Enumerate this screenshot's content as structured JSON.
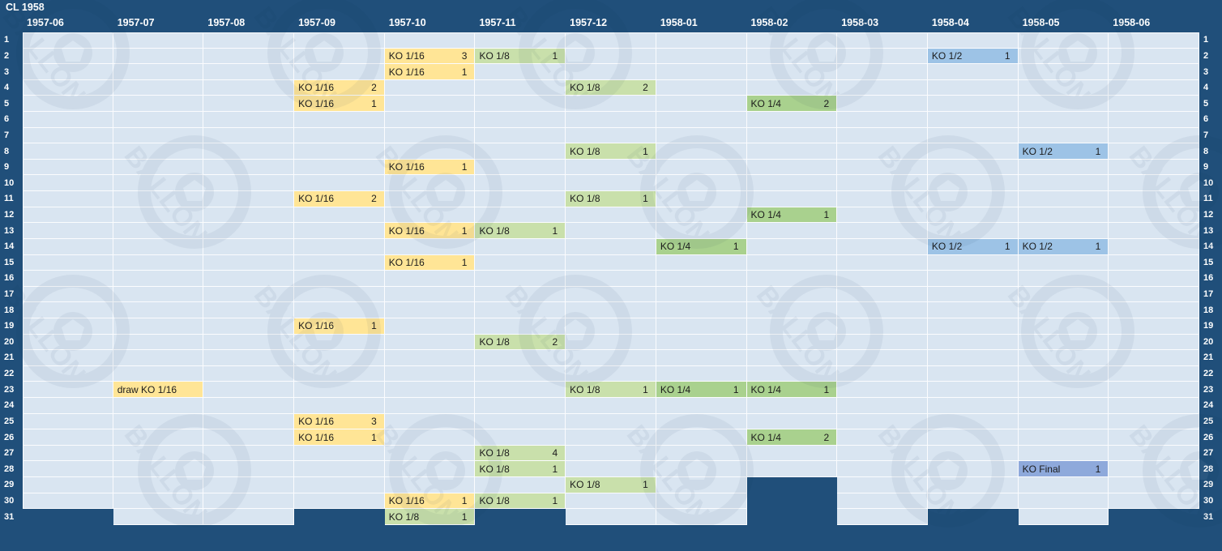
{
  "title": "CL 1958",
  "calendar": {
    "first_day": 1,
    "last_day": 31,
    "months": [
      {
        "id": "1957-06",
        "label": "1957-06",
        "days": 30
      },
      {
        "id": "1957-07",
        "label": "1957-07",
        "days": 31
      },
      {
        "id": "1957-08",
        "label": "1957-08",
        "days": 31
      },
      {
        "id": "1957-09",
        "label": "1957-09",
        "days": 30
      },
      {
        "id": "1957-10",
        "label": "1957-10",
        "days": 31
      },
      {
        "id": "1957-11",
        "label": "1957-11",
        "days": 30
      },
      {
        "id": "1957-12",
        "label": "1957-12",
        "days": 31
      },
      {
        "id": "1958-01",
        "label": "1958-01",
        "days": 31
      },
      {
        "id": "1958-02",
        "label": "1958-02",
        "days": 28
      },
      {
        "id": "1958-03",
        "label": "1958-03",
        "days": 31
      },
      {
        "id": "1958-04",
        "label": "1958-04",
        "days": 30
      },
      {
        "id": "1958-05",
        "label": "1958-05",
        "days": 31
      },
      {
        "id": "1958-06",
        "label": "1958-06",
        "days": 30
      }
    ]
  },
  "events": [
    {
      "month": "1957-10",
      "day": 2,
      "label": "KO 1/16",
      "count": "3",
      "type": "ko16"
    },
    {
      "month": "1957-11",
      "day": 2,
      "label": "KO 1/8",
      "count": "1",
      "type": "ko8"
    },
    {
      "month": "1958-04",
      "day": 2,
      "label": "KO 1/2",
      "count": "1",
      "type": "ko2"
    },
    {
      "month": "1957-10",
      "day": 3,
      "label": "KO 1/16",
      "count": "1",
      "type": "ko16"
    },
    {
      "month": "1957-09",
      "day": 4,
      "label": "KO 1/16",
      "count": "2",
      "type": "ko16"
    },
    {
      "month": "1957-12",
      "day": 4,
      "label": "KO 1/8",
      "count": "2",
      "type": "ko8"
    },
    {
      "month": "1957-09",
      "day": 5,
      "label": "KO 1/16",
      "count": "1",
      "type": "ko16"
    },
    {
      "month": "1958-02",
      "day": 5,
      "label": "KO 1/4",
      "count": "2",
      "type": "ko4"
    },
    {
      "month": "1957-12",
      "day": 8,
      "label": "KO 1/8",
      "count": "1",
      "type": "ko8"
    },
    {
      "month": "1958-05",
      "day": 8,
      "label": "KO 1/2",
      "count": "1",
      "type": "ko2"
    },
    {
      "month": "1957-10",
      "day": 9,
      "label": "KO 1/16",
      "count": "1",
      "type": "ko16"
    },
    {
      "month": "1957-09",
      "day": 11,
      "label": "KO 1/16",
      "count": "2",
      "type": "ko16"
    },
    {
      "month": "1957-12",
      "day": 11,
      "label": "KO 1/8",
      "count": "1",
      "type": "ko8"
    },
    {
      "month": "1958-02",
      "day": 12,
      "label": "KO 1/4",
      "count": "1",
      "type": "ko4"
    },
    {
      "month": "1957-10",
      "day": 13,
      "label": "KO 1/16",
      "count": "1",
      "type": "ko16"
    },
    {
      "month": "1957-11",
      "day": 13,
      "label": "KO 1/8",
      "count": "1",
      "type": "ko8"
    },
    {
      "month": "1958-01",
      "day": 14,
      "label": "KO 1/4",
      "count": "1",
      "type": "ko4"
    },
    {
      "month": "1958-04",
      "day": 14,
      "label": "KO 1/2",
      "count": "1",
      "type": "ko2"
    },
    {
      "month": "1958-05",
      "day": 14,
      "label": "KO 1/2",
      "count": "1",
      "type": "ko2"
    },
    {
      "month": "1957-10",
      "day": 15,
      "label": "KO 1/16",
      "count": "1",
      "type": "ko16"
    },
    {
      "month": "1957-09",
      "day": 19,
      "label": "KO 1/16",
      "count": "1",
      "type": "ko16"
    },
    {
      "month": "1957-11",
      "day": 20,
      "label": "KO 1/8",
      "count": "2",
      "type": "ko8"
    },
    {
      "month": "1957-07",
      "day": 23,
      "label": "draw KO 1/16",
      "count": "",
      "type": "ko16"
    },
    {
      "month": "1957-12",
      "day": 23,
      "label": "KO 1/8",
      "count": "1",
      "type": "ko8"
    },
    {
      "month": "1958-01",
      "day": 23,
      "label": "KO 1/4",
      "count": "1",
      "type": "ko4"
    },
    {
      "month": "1958-02",
      "day": 23,
      "label": "KO 1/4",
      "count": "1",
      "type": "ko4"
    },
    {
      "month": "1957-09",
      "day": 25,
      "label": "KO 1/16",
      "count": "3",
      "type": "ko16"
    },
    {
      "month": "1957-09",
      "day": 26,
      "label": "KO 1/16",
      "count": "1",
      "type": "ko16"
    },
    {
      "month": "1958-02",
      "day": 26,
      "label": "KO 1/4",
      "count": "2",
      "type": "ko4"
    },
    {
      "month": "1957-11",
      "day": 27,
      "label": "KO 1/8",
      "count": "4",
      "type": "ko8"
    },
    {
      "month": "1957-11",
      "day": 28,
      "label": "KO 1/8",
      "count": "1",
      "type": "ko8"
    },
    {
      "month": "1958-05",
      "day": 28,
      "label": "KO Final",
      "count": "1",
      "type": "final"
    },
    {
      "month": "1957-12",
      "day": 29,
      "label": "KO 1/8",
      "count": "1",
      "type": "ko8"
    },
    {
      "month": "1957-10",
      "day": 30,
      "label": "KO 1/16",
      "count": "1",
      "type": "ko16"
    },
    {
      "month": "1957-11",
      "day": 30,
      "label": "KO 1/8",
      "count": "1",
      "type": "ko8"
    },
    {
      "month": "1957-10",
      "day": 31,
      "label": "KO 1/8",
      "count": "1",
      "type": "ko8"
    }
  ],
  "colors": {
    "background": "#204f7a",
    "cell": "#d9e5f1",
    "grid_line": "#fbfcfe",
    "ko16": "#ffe596",
    "ko8": "#c9e0ab",
    "ko4": "#a9d18e",
    "ko2": "#9dc3e6",
    "final": "#8ea9db",
    "header_text": "#ffffff",
    "event_text": "#1b1b1b"
  },
  "watermark": {
    "text": "BALLON"
  }
}
